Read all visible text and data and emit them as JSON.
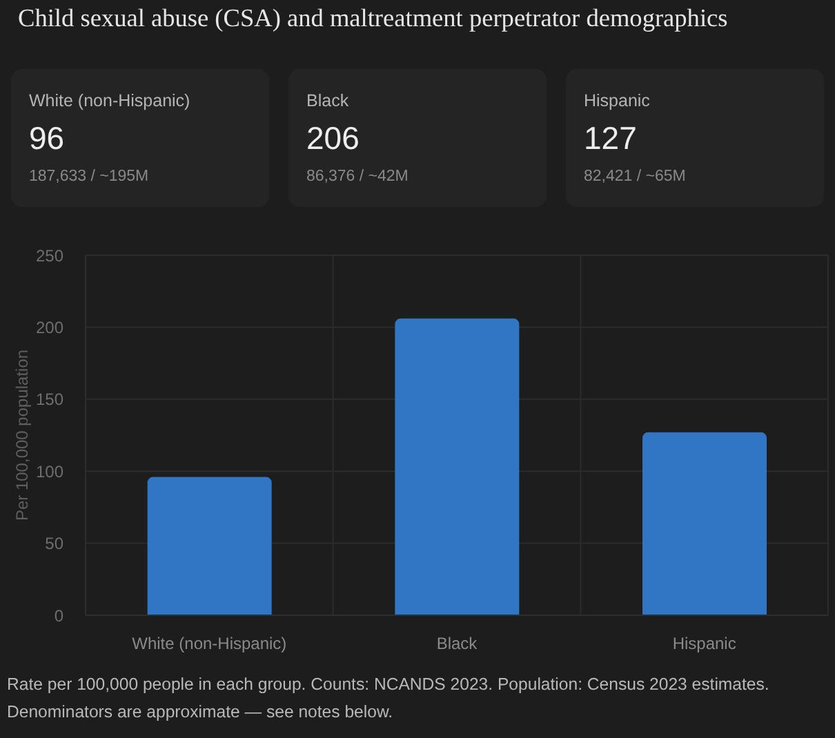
{
  "chart_data": [
    {
      "type": "other",
      "title": "Child sexual abuse (CSA) and maltreatment perpetrator demographics",
      "categories": [
        "White (non-Hispanic)",
        "Black",
        "Hispanic"
      ],
      "values": [
        96,
        206,
        127
      ],
      "data_labels": true,
      "annotations": [
        "187,633 / ~195M",
        "86,376 / ~42M",
        "82,421 / ~65M"
      ]
    },
    {
      "type": "bar",
      "categories": [
        "White (non-Hispanic)",
        "Black",
        "Hispanic"
      ],
      "values": [
        96,
        206,
        127
      ],
      "color": "#3176c4",
      "ylim": [
        0,
        250
      ],
      "yticks": [
        0,
        50,
        100,
        150,
        200,
        250
      ],
      "ylabel": "Per 100,000 population",
      "grid": true,
      "annotations": [
        "Rate per 100,000 people in each group. Counts: NCANDS 2023. Population: Census 2023 estimates. Denominators are approximate — see notes below."
      ]
    }
  ]
}
